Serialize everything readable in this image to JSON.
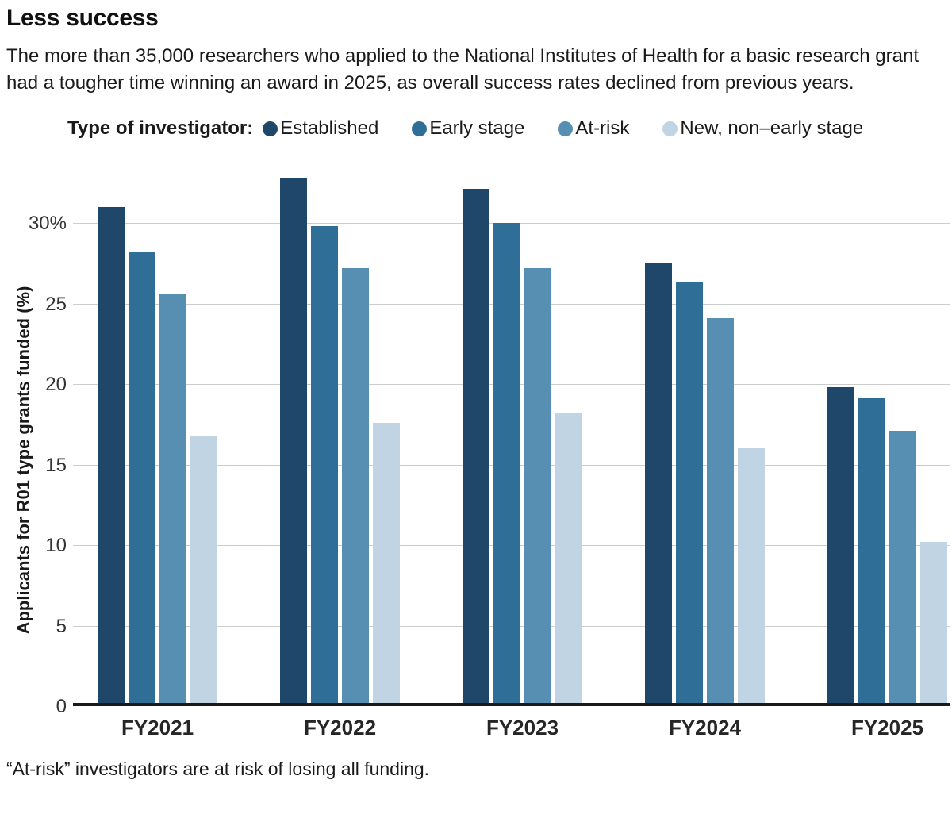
{
  "title": "Less success",
  "subtitle": "The more than 35,000 researchers who applied to the National Institutes of Health for a basic research grant had a tougher time winning an award in 2025, as overall success rates declined from previous years.",
  "legend": {
    "label": "Type of investigator:",
    "items": [
      {
        "label": "Established",
        "color": "#1f476a"
      },
      {
        "label": "Early stage",
        "color": "#2f6f97"
      },
      {
        "label": "At-risk",
        "color": "#568fb1"
      },
      {
        "label": "New, non–early stage",
        "color": "#c1d4e3"
      }
    ]
  },
  "chart_data": {
    "type": "bar",
    "title": "Less success",
    "categories": [
      "FY2021",
      "FY2022",
      "FY2023",
      "FY2024",
      "FY2025"
    ],
    "series": [
      {
        "name": "Established",
        "color": "#1f476a",
        "values": [
          30.8,
          32.6,
          31.9,
          27.3,
          19.6
        ]
      },
      {
        "name": "Early stage",
        "color": "#2f6f97",
        "values": [
          28.0,
          29.6,
          29.8,
          26.1,
          18.9
        ]
      },
      {
        "name": "At-risk",
        "color": "#568fb1",
        "values": [
          25.4,
          27.0,
          27.0,
          23.9,
          16.9
        ]
      },
      {
        "name": "New, non–early stage",
        "color": "#c1d4e3",
        "values": [
          16.6,
          17.4,
          18.0,
          15.8,
          10.0
        ]
      }
    ],
    "xlabel": "",
    "ylabel": "Applicants for R01 type grants funded (%)",
    "ylim": [
      0,
      33.4
    ],
    "yticks": [
      {
        "value": 0,
        "label": "0"
      },
      {
        "value": 5,
        "label": "5"
      },
      {
        "value": 10,
        "label": "10"
      },
      {
        "value": 15,
        "label": "15"
      },
      {
        "value": 20,
        "label": "20"
      },
      {
        "value": 25,
        "label": "25"
      },
      {
        "value": 30,
        "label": "30%"
      }
    ],
    "grid": true,
    "legend_position": "top"
  },
  "footnote": "“At-risk” investigators are at risk of losing all funding."
}
